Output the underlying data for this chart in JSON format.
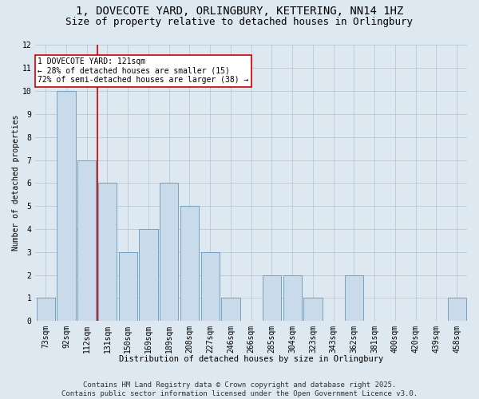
{
  "title_line1": "1, DOVECOTE YARD, ORLINGBURY, KETTERING, NN14 1HZ",
  "title_line2": "Size of property relative to detached houses in Orlingbury",
  "xlabel": "Distribution of detached houses by size in Orlingbury",
  "ylabel": "Number of detached properties",
  "categories": [
    "73sqm",
    "92sqm",
    "112sqm",
    "131sqm",
    "150sqm",
    "169sqm",
    "189sqm",
    "208sqm",
    "227sqm",
    "246sqm",
    "266sqm",
    "285sqm",
    "304sqm",
    "323sqm",
    "343sqm",
    "362sqm",
    "381sqm",
    "400sqm",
    "420sqm",
    "439sqm",
    "458sqm"
  ],
  "values": [
    1,
    10,
    7,
    6,
    3,
    4,
    6,
    5,
    3,
    1,
    0,
    2,
    2,
    1,
    0,
    2,
    0,
    0,
    0,
    0,
    1
  ],
  "bar_color": "#c9daea",
  "bar_edge_color": "#6699bb",
  "grid_color": "#b8c8d8",
  "background_color": "#dde8f0",
  "vline_x": 2.5,
  "vline_color": "#cc0000",
  "annotation_text": "1 DOVECOTE YARD: 121sqm\n← 28% of detached houses are smaller (15)\n72% of semi-detached houses are larger (38) →",
  "annotation_box_color": "#ffffff",
  "annotation_box_edge": "#cc0000",
  "ylim": [
    0,
    12
  ],
  "yticks": [
    0,
    1,
    2,
    3,
    4,
    5,
    6,
    7,
    8,
    9,
    10,
    11,
    12
  ],
  "footer": "Contains HM Land Registry data © Crown copyright and database right 2025.\nContains public sector information licensed under the Open Government Licence v3.0.",
  "title_fontsize": 10,
  "subtitle_fontsize": 9,
  "footer_fontsize": 6.5,
  "annot_fontsize": 7,
  "axis_fontsize": 7,
  "ylabel_fontsize": 7,
  "xlabel_fontsize": 7.5
}
